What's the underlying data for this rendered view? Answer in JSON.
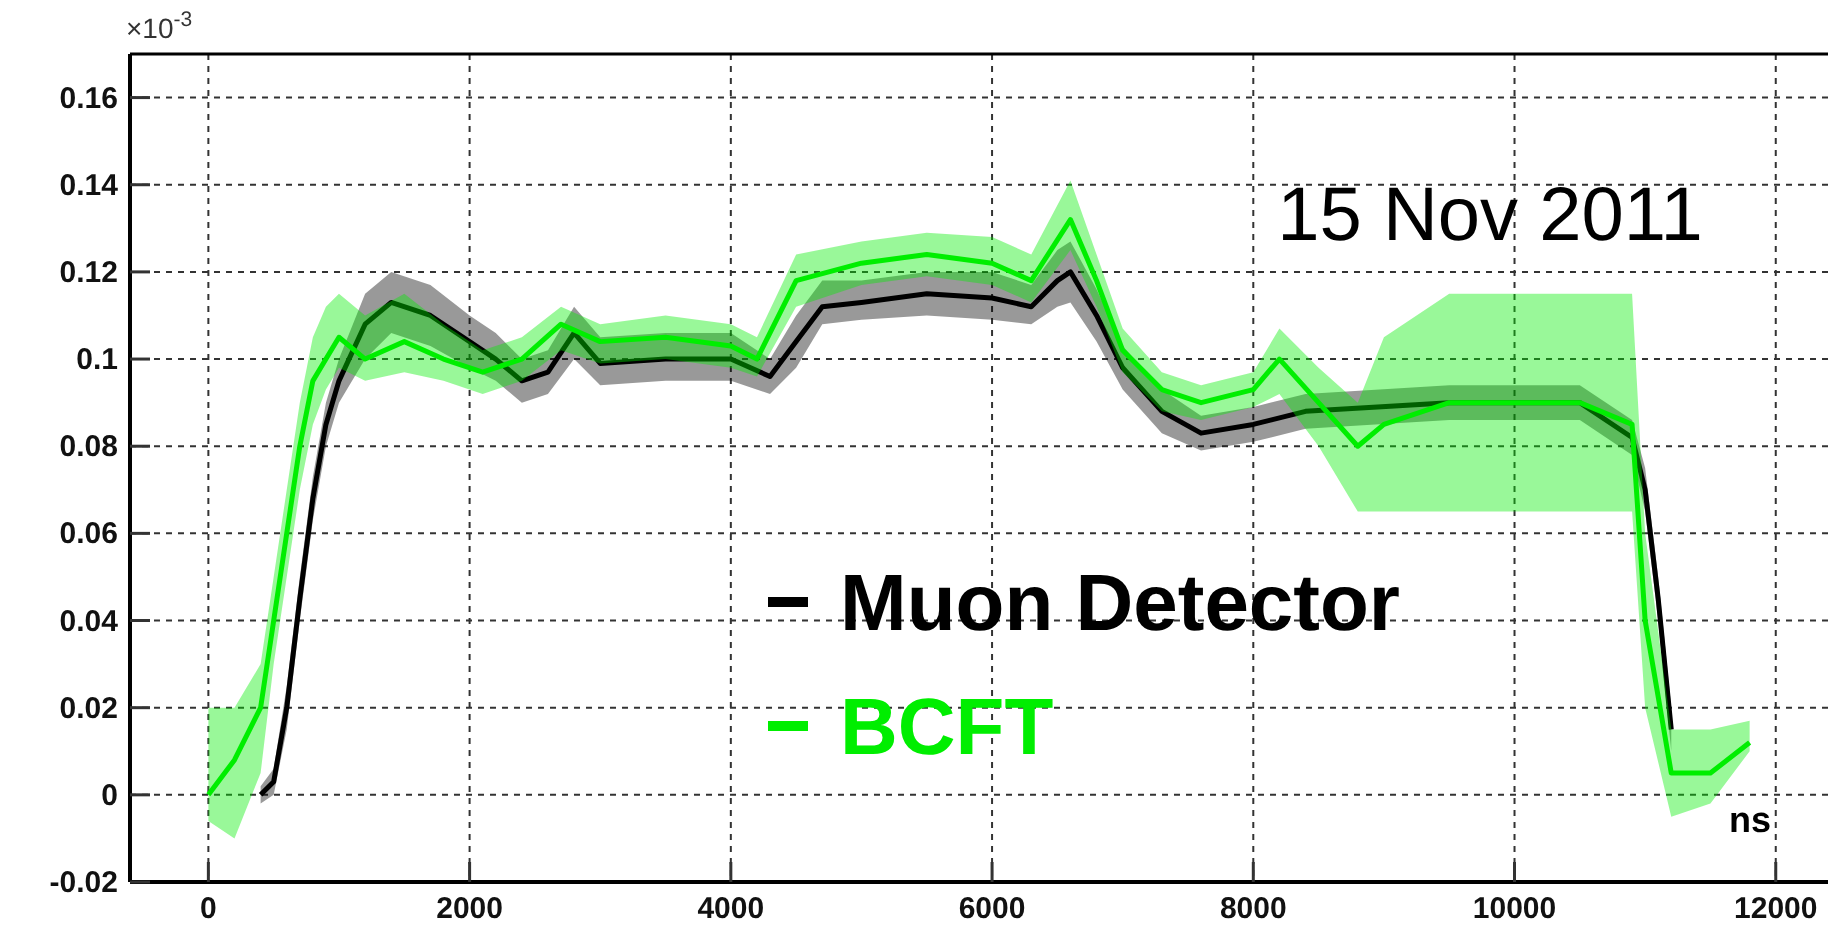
{
  "chart_data": {
    "type": "line",
    "xlabel": "ns",
    "ylabel": "×10$^{-3}$",
    "annotations": [
      "15 Nov 2011"
    ],
    "xlim": [
      -600,
      12400
    ],
    "xticks": [
      0,
      2000,
      4000,
      6000,
      8000,
      10000,
      12000
    ],
    "ylim": [
      -0.02,
      0.17
    ],
    "yticks": [
      -0.02,
      0,
      0.02,
      0.04,
      0.06,
      0.08,
      0.1,
      0.12,
      0.14,
      0.16
    ],
    "grid": true,
    "legend": "bottom",
    "marker": "none",
    "line_style": "solid",
    "series": [
      {
        "name": "Muon Detector",
        "color": "#000000",
        "x": [
          400,
          500,
          600,
          700,
          800,
          900,
          1000,
          1200,
          1400,
          1700,
          2000,
          2200,
          2400,
          2600,
          2800,
          3000,
          3500,
          4000,
          4300,
          4500,
          4700,
          5000,
          5500,
          6000,
          6300,
          6500,
          6600,
          6800,
          7000,
          7300,
          7600,
          8000,
          8400,
          9500,
          10500,
          10900,
          11000,
          11100,
          11200
        ],
        "values": [
          0,
          0.003,
          0.02,
          0.045,
          0.068,
          0.085,
          0.095,
          0.108,
          0.113,
          0.11,
          0.104,
          0.1,
          0.095,
          0.097,
          0.106,
          0.099,
          0.1,
          0.1,
          0.096,
          0.104,
          0.112,
          0.113,
          0.115,
          0.114,
          0.112,
          0.118,
          0.12,
          0.11,
          0.098,
          0.088,
          0.083,
          0.085,
          0.088,
          0.09,
          0.09,
          0.082,
          0.07,
          0.045,
          0.015
        ],
        "lower": [
          -0.002,
          0,
          0.015,
          0.04,
          0.063,
          0.08,
          0.09,
          0.1,
          0.106,
          0.103,
          0.098,
          0.095,
          0.09,
          0.092,
          0.1,
          0.094,
          0.095,
          0.095,
          0.092,
          0.098,
          0.108,
          0.109,
          0.11,
          0.109,
          0.108,
          0.112,
          0.113,
          0.104,
          0.093,
          0.083,
          0.079,
          0.081,
          0.084,
          0.086,
          0.086,
          0.078,
          0.065,
          0.04,
          0.01
        ],
        "upper": [
          0.002,
          0.006,
          0.025,
          0.05,
          0.073,
          0.09,
          0.1,
          0.115,
          0.12,
          0.117,
          0.11,
          0.106,
          0.1,
          0.102,
          0.112,
          0.105,
          0.106,
          0.106,
          0.1,
          0.11,
          0.118,
          0.118,
          0.12,
          0.12,
          0.117,
          0.125,
          0.127,
          0.116,
          0.103,
          0.093,
          0.087,
          0.089,
          0.092,
          0.094,
          0.094,
          0.086,
          0.075,
          0.05,
          0.02
        ]
      },
      {
        "name": "BCFT",
        "color": "#00ee00",
        "x": [
          0,
          200,
          400,
          500,
          600,
          700,
          800,
          900,
          1000,
          1200,
          1500,
          1800,
          2100,
          2400,
          2700,
          3000,
          3500,
          4000,
          4200,
          4500,
          5000,
          5500,
          6000,
          6300,
          6600,
          6800,
          7000,
          7300,
          7600,
          8000,
          8200,
          8500,
          8800,
          9000,
          9500,
          10000,
          10500,
          10900,
          11000,
          11200,
          11500,
          11800
        ],
        "values": [
          0,
          0.008,
          0.02,
          0.04,
          0.06,
          0.08,
          0.095,
          0.1,
          0.105,
          0.1,
          0.104,
          0.1,
          0.097,
          0.1,
          0.108,
          0.104,
          0.105,
          0.103,
          0.1,
          0.118,
          0.122,
          0.124,
          0.122,
          0.118,
          0.132,
          0.118,
          0.102,
          0.093,
          0.09,
          0.093,
          0.1,
          0.09,
          0.08,
          0.085,
          0.09,
          0.09,
          0.09,
          0.085,
          0.04,
          0.005,
          0.005,
          0.012
        ],
        "lower": [
          -0.006,
          -0.01,
          0.005,
          0.03,
          0.05,
          0.07,
          0.085,
          0.093,
          0.098,
          0.095,
          0.097,
          0.095,
          0.092,
          0.095,
          0.102,
          0.099,
          0.1,
          0.098,
          0.096,
          0.112,
          0.117,
          0.119,
          0.117,
          0.113,
          0.125,
          0.112,
          0.097,
          0.088,
          0.086,
          0.089,
          0.092,
          0.08,
          0.065,
          0.065,
          0.065,
          0.065,
          0.065,
          0.065,
          0.02,
          -0.005,
          -0.002,
          0.01
        ],
        "upper": [
          0.02,
          0.02,
          0.03,
          0.05,
          0.07,
          0.09,
          0.105,
          0.112,
          0.115,
          0.11,
          0.115,
          0.108,
          0.102,
          0.105,
          0.112,
          0.108,
          0.11,
          0.108,
          0.105,
          0.124,
          0.127,
          0.129,
          0.128,
          0.124,
          0.141,
          0.124,
          0.107,
          0.097,
          0.094,
          0.097,
          0.107,
          0.098,
          0.09,
          0.105,
          0.115,
          0.115,
          0.115,
          0.115,
          0.06,
          0.015,
          0.015,
          0.017
        ]
      }
    ]
  }
}
